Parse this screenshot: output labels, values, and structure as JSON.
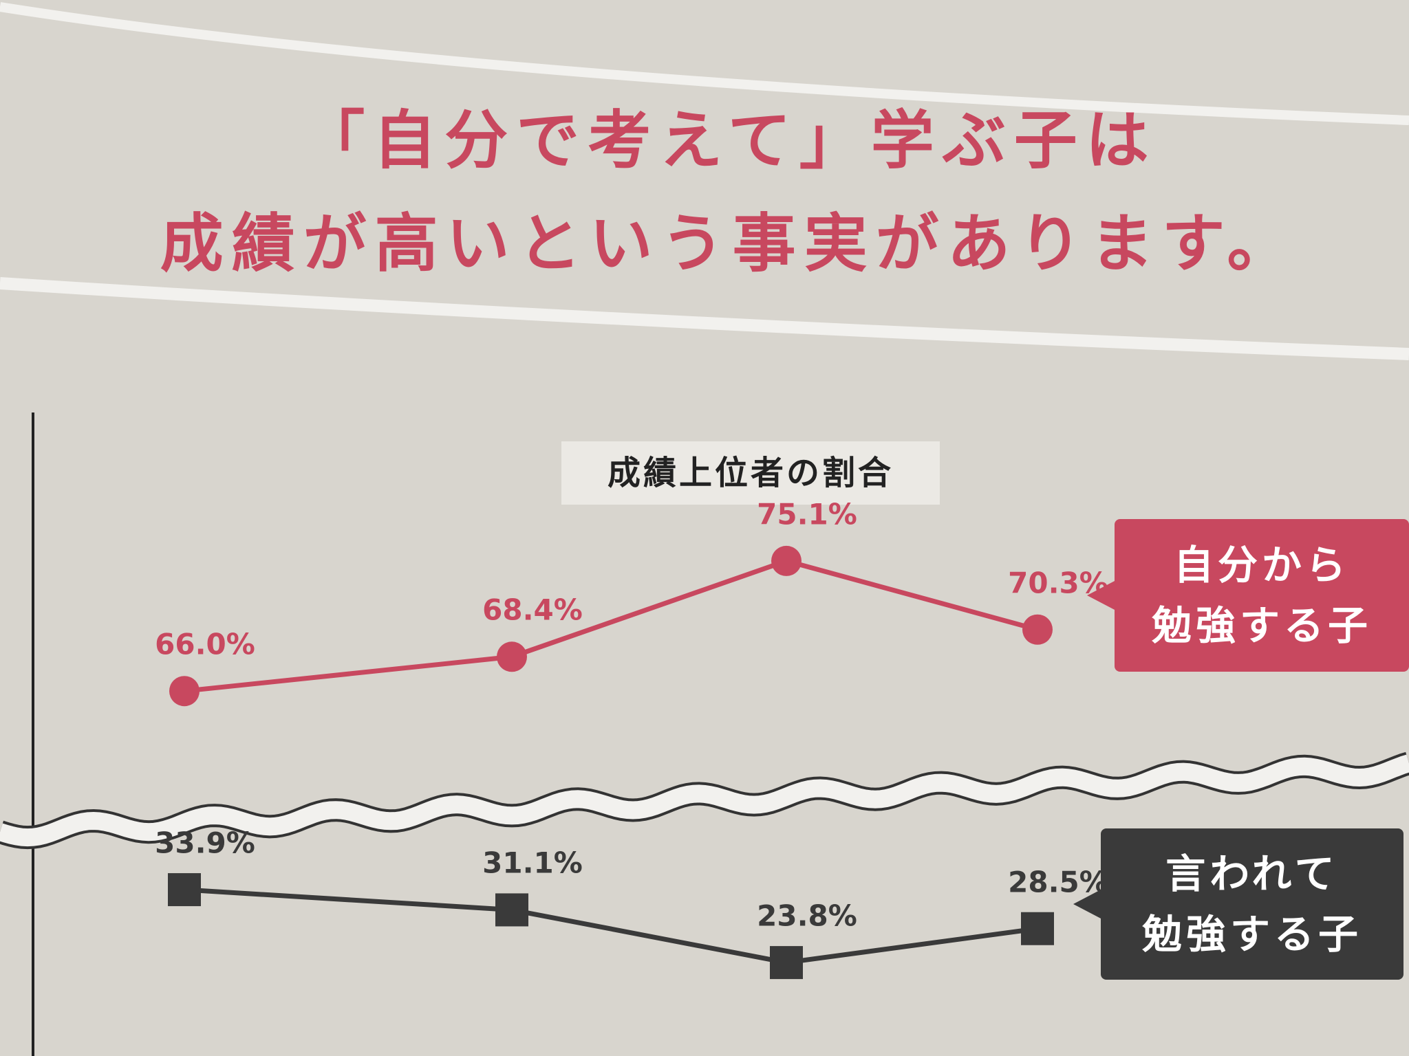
{
  "chart_data": {
    "type": "line",
    "title": "「自分で考えて」学ぶ子は\n成績が高いという事実があります。",
    "subtitle": "成績上位者の割合",
    "categories": [
      null,
      null,
      null,
      null
    ],
    "series": [
      {
        "name": "自分から\n勉強する子",
        "color": "#c8485f",
        "marker": "circle",
        "values": [
          66.0,
          68.4,
          75.1,
          70.3
        ],
        "value_labels": [
          "66.0%",
          "68.4%",
          "75.1%",
          "70.3%"
        ],
        "ylim": [
          60,
          80
        ]
      },
      {
        "name": "言われて\n勉強する子",
        "color": "#3a3a3a",
        "marker": "square",
        "values": [
          33.9,
          31.1,
          23.8,
          28.5
        ],
        "value_labels": [
          "33.9%",
          "31.1%",
          "23.8%",
          "28.5%"
        ],
        "ylim": [
          20,
          40
        ]
      }
    ]
  }
}
